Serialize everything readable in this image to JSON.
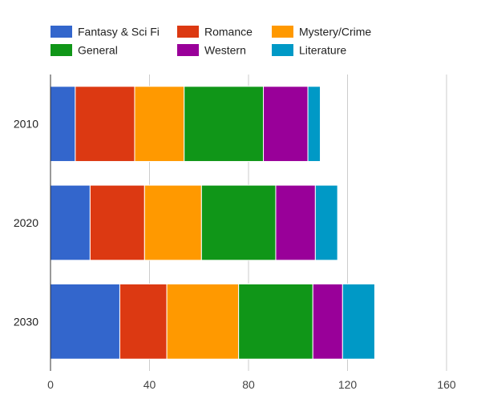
{
  "chart_data": {
    "type": "bar",
    "orientation": "horizontal",
    "stacked": true,
    "categories": [
      "2010",
      "2020",
      "2030"
    ],
    "series": [
      {
        "name": "Fantasy & Sci Fi",
        "color": "#3366cc",
        "values": [
          10,
          16,
          28
        ]
      },
      {
        "name": "Romance",
        "color": "#dc3912",
        "values": [
          24,
          22,
          19
        ]
      },
      {
        "name": "Mystery/Crime",
        "color": "#ff9900",
        "values": [
          20,
          23,
          29
        ]
      },
      {
        "name": "General",
        "color": "#109618",
        "values": [
          32,
          30,
          30
        ]
      },
      {
        "name": "Western",
        "color": "#990099",
        "values": [
          18,
          16,
          12
        ]
      },
      {
        "name": "Literature",
        "color": "#0099c6",
        "values": [
          5,
          9,
          13
        ]
      }
    ],
    "xlim": [
      0,
      160
    ],
    "x_ticks": [
      "0",
      "40",
      "80",
      "120",
      "160"
    ],
    "grid": true,
    "legend_position": "top"
  }
}
